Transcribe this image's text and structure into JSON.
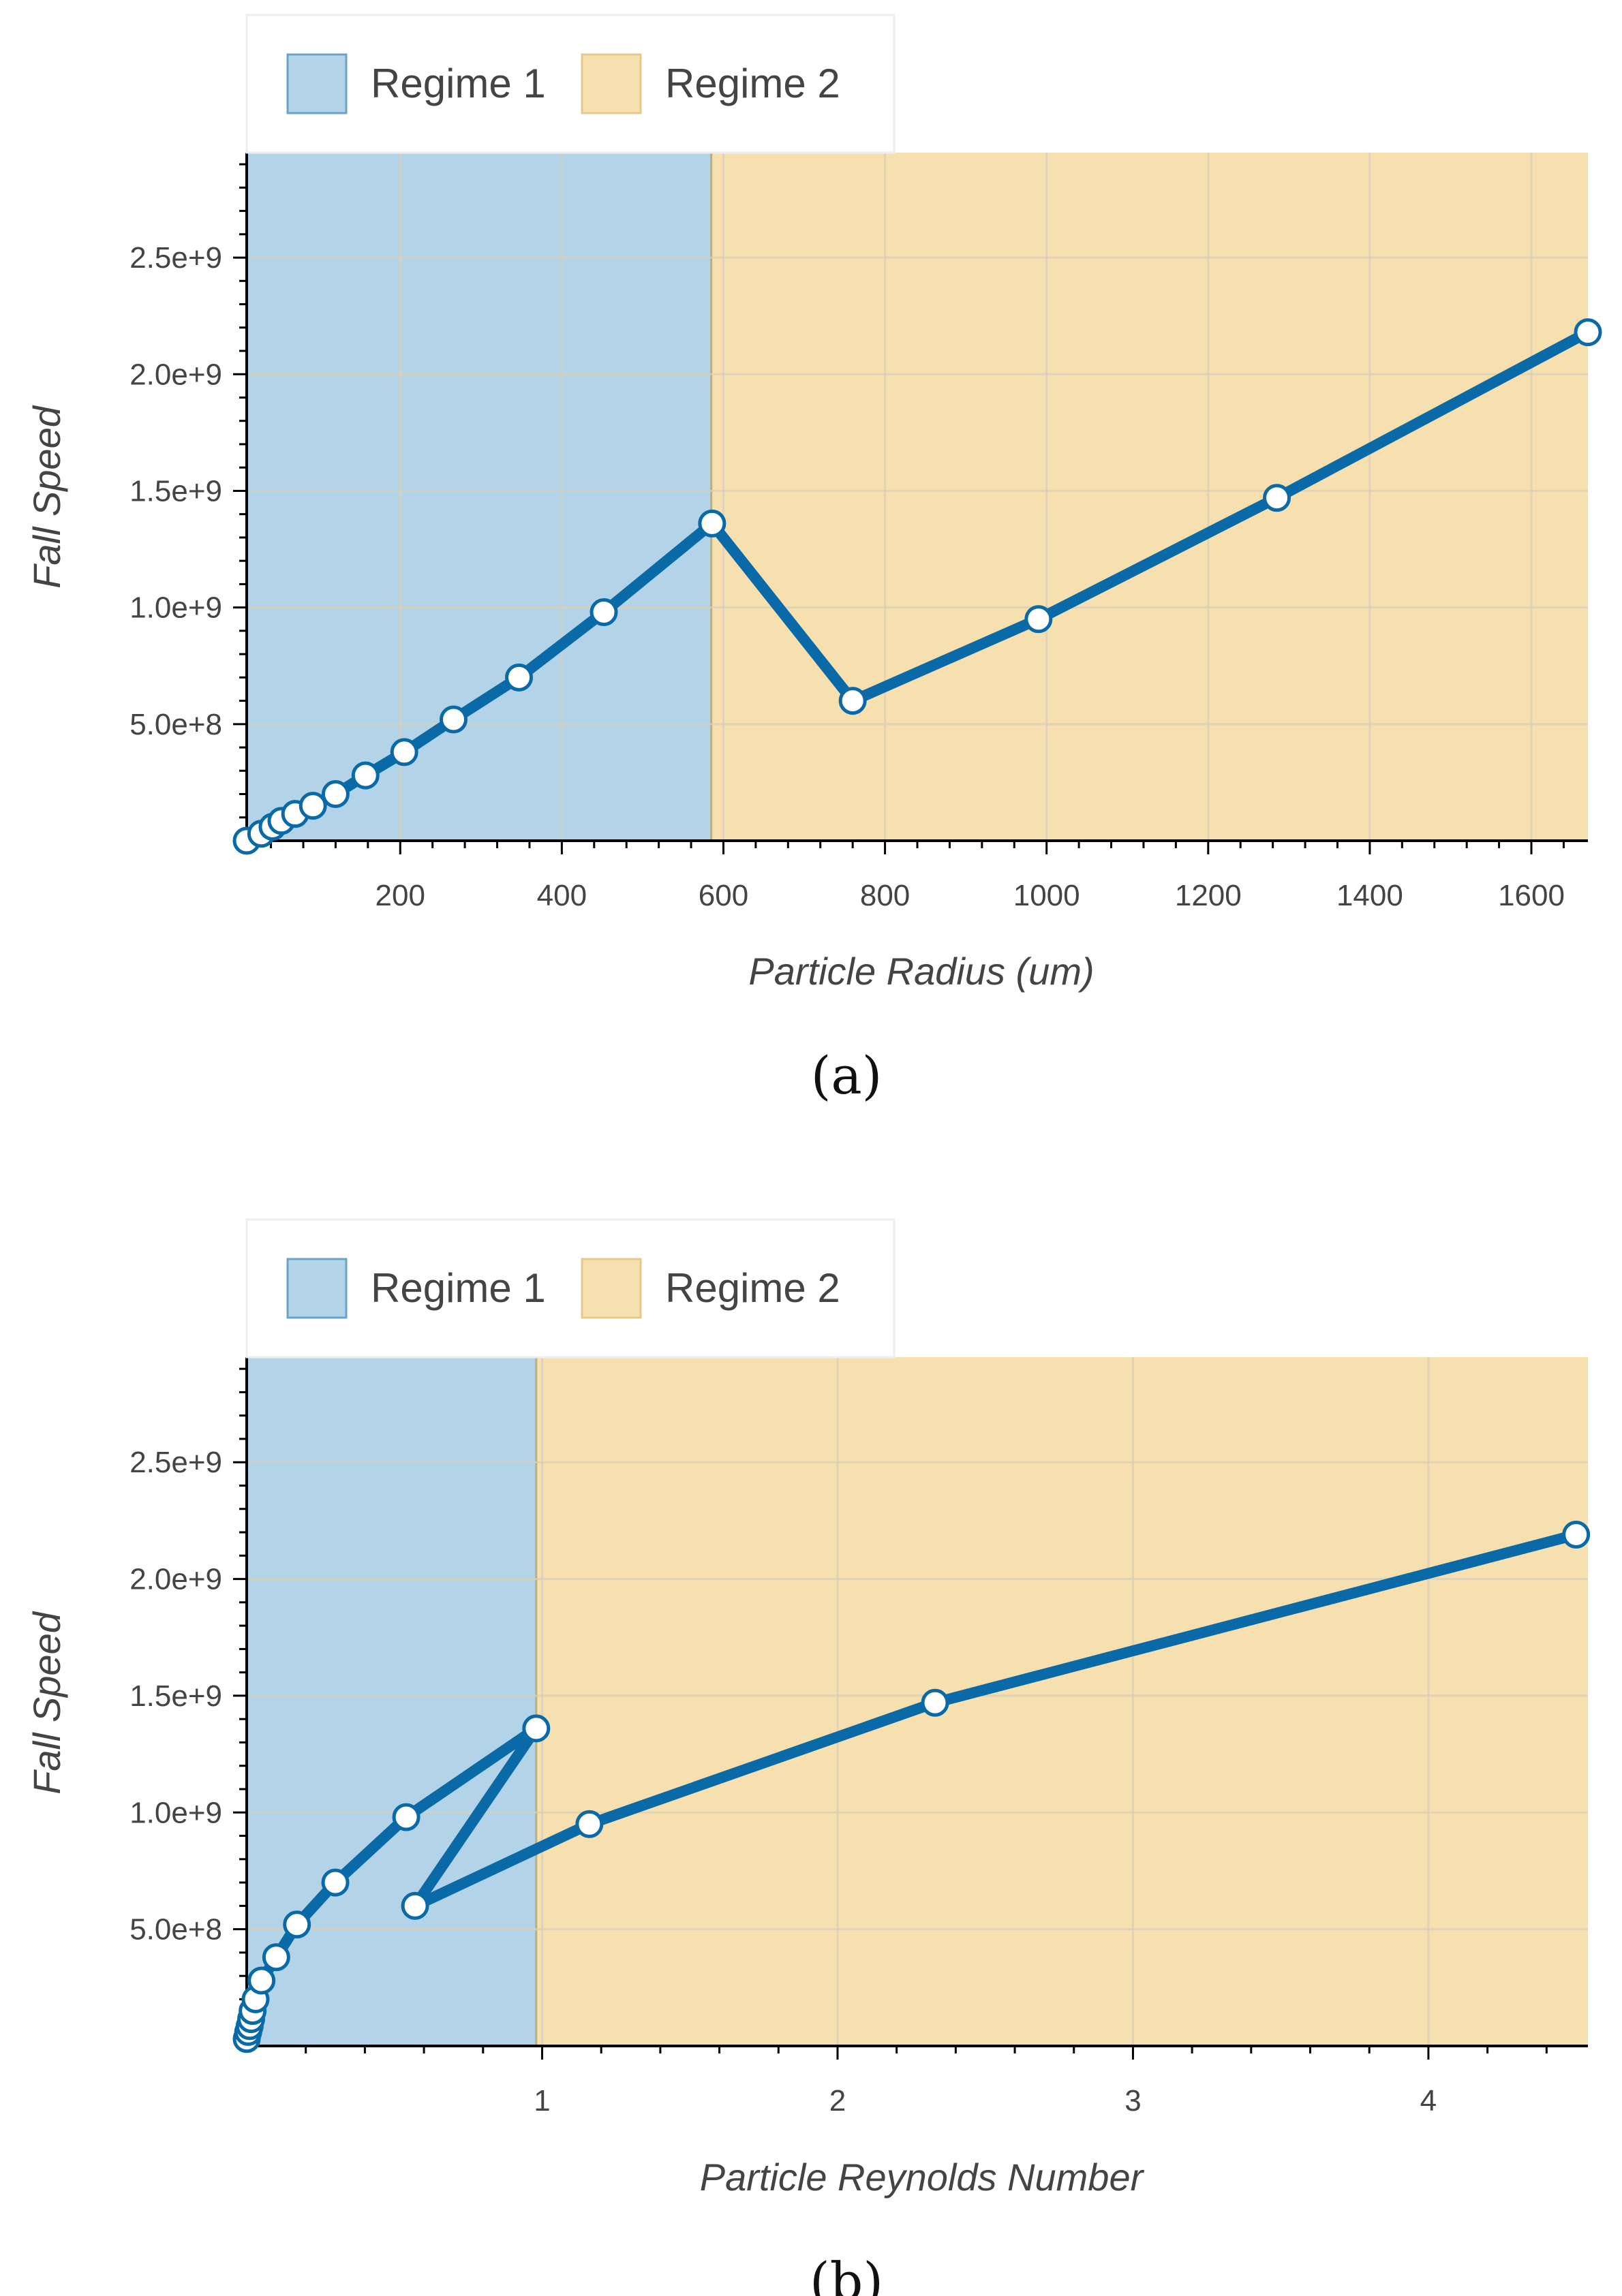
{
  "colors": {
    "regime1": "#b3d4e8",
    "regime2": "#f6e0b0",
    "line": "#0a6aa8",
    "marker_fill": "#ffffff",
    "grid": "#d8cfb8",
    "axis": "#000000",
    "text": "#444444"
  },
  "chart_data": [
    {
      "id": "a",
      "type": "line",
      "caption": "(a)",
      "xlabel": "Particle Radius (um)",
      "ylabel": "Fall Speed",
      "xlim": [
        10,
        1670
      ],
      "ylim": [
        0,
        2950000000.0
      ],
      "x_ticks": [
        200,
        400,
        600,
        800,
        1000,
        1200,
        1400,
        1600
      ],
      "x_tick_labels": [
        "200",
        "400",
        "600",
        "800",
        "1000",
        "1200",
        "1400",
        "1600"
      ],
      "y_ticks": [
        500000000,
        1000000000,
        1500000000,
        2000000000,
        2500000000
      ],
      "y_tick_labels": [
        "5.0e+8",
        "1.0e+9",
        "1.5e+9",
        "2.0e+9",
        "2.5e+9"
      ],
      "regimes": [
        {
          "name": "Regime 1",
          "x_from": 10,
          "x_to": 585
        },
        {
          "name": "Regime 2",
          "x_from": 585,
          "x_to": 1670
        }
      ],
      "legend": [
        "Regime 1",
        "Regime 2"
      ],
      "series": [
        {
          "name": "Fall Speed",
          "x": [
            10,
            28,
            42,
            53,
            70,
            92,
            120,
            157,
            205,
            266,
            347,
            452,
            586,
            760,
            990,
            1285,
            1670
          ],
          "y": [
            0,
            30000000,
            60000000,
            85000000,
            115000000,
            150000000,
            200000000,
            280000000,
            380000000,
            520000000,
            700000000,
            980000000,
            1360000000,
            600000000,
            950000000,
            1470000000,
            2180000000
          ]
        }
      ]
    },
    {
      "id": "b",
      "type": "line",
      "caption": "(b)",
      "xlabel": "Particle Reynolds Number",
      "ylabel": "Fall Speed",
      "xlim": [
        0,
        4.54
      ],
      "ylim": [
        0,
        2950000000.0
      ],
      "x_ticks": [
        1,
        2,
        3,
        4
      ],
      "x_tick_labels": [
        "1",
        "2",
        "3",
        "4"
      ],
      "y_ticks": [
        500000000,
        1000000000,
        1500000000,
        2000000000,
        2500000000
      ],
      "y_tick_labels": [
        "5.0e+8",
        "1.0e+9",
        "1.5e+9",
        "2.0e+9",
        "2.5e+9"
      ],
      "regimes": [
        {
          "name": "Regime 1",
          "x_from": 0,
          "x_to": 0.98
        },
        {
          "name": "Regime 2",
          "x_from": 0.98,
          "x_to": 4.54
        }
      ],
      "legend": [
        "Regime 1",
        "Regime 2"
      ],
      "series": [
        {
          "name": "Fall Speed",
          "x": [
            0.0,
            0.005,
            0.01,
            0.015,
            0.02,
            0.03,
            0.05,
            0.1,
            0.17,
            0.3,
            0.54,
            0.98,
            0.57,
            1.16,
            2.33,
            4.5
          ],
          "y": [
            30000000,
            60000000,
            85000000,
            115000000,
            150000000,
            200000000,
            280000000,
            380000000,
            520000000,
            700000000,
            980000000,
            1360000000,
            600000000,
            950000000,
            1470000000,
            2190000000
          ]
        }
      ]
    }
  ]
}
